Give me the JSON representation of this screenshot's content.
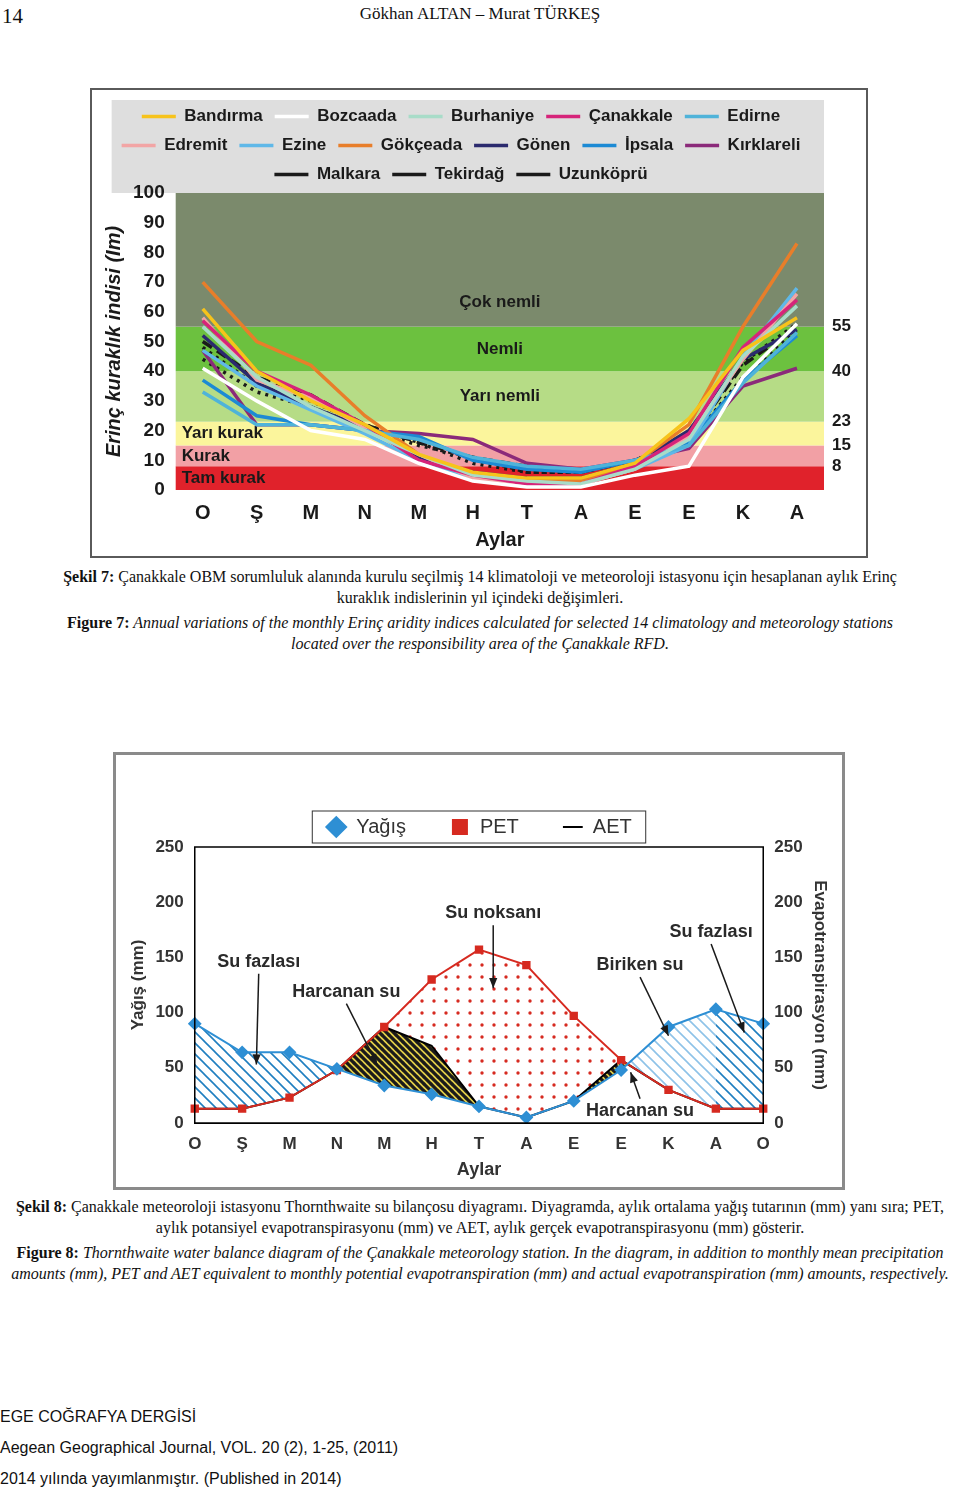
{
  "page": {
    "number": "14",
    "running_head": "Gökhan ALTAN – Murat TÜRKEŞ",
    "footer": [
      "EGE COĞRAFYA DERGİSİ",
      "Aegean Geographical Journal, VOL. 20 (2), 1-25, (2011)",
      "2014 yılında yayımlanmıştır. (Published in 2014)"
    ]
  },
  "chart_data": [
    {
      "type": "line",
      "categories": [
        "O",
        "Ş",
        "M",
        "N",
        "M",
        "H",
        "T",
        "A",
        "E",
        "E",
        "K",
        "A"
      ],
      "x_label": "Aylar",
      "y_label": "Erinç kuraklık indisi (Im)",
      "ylim": [
        0,
        100
      ],
      "yticks": [
        0,
        10,
        20,
        30,
        40,
        50,
        60,
        70,
        80,
        90,
        100
      ],
      "grid": false,
      "legend": "top",
      "bands": [
        {
          "label": "Tam kurak",
          "from": 0,
          "to": 8,
          "color": "#e0222b"
        },
        {
          "label": "Kurak",
          "from": 8,
          "to": 15,
          "color": "#f2a0a5"
        },
        {
          "label": "Yarı kurak",
          "from": 15,
          "to": 23,
          "color": "#fbf59c"
        },
        {
          "label": "Yarı nemli",
          "from": 23,
          "to": 40,
          "color": "#b6dc86"
        },
        {
          "label": "Nemli",
          "from": 40,
          "to": 55,
          "color": "#6cc13f"
        },
        {
          "label": "Çok nemli",
          "from": 55,
          "to": 100,
          "color": "#7b8a6c"
        }
      ],
      "series": [
        {
          "name": "Bandırma",
          "color": "#f7c31b",
          "values": [
            61,
            40,
            30,
            22,
            12,
            6,
            4,
            4,
            9,
            24,
            47,
            58
          ]
        },
        {
          "name": "Bozcaada",
          "color": "#ffffff",
          "values": [
            41,
            30,
            20,
            17,
            9,
            3,
            1,
            1,
            5,
            8,
            38,
            56
          ]
        },
        {
          "name": "Burhaniye",
          "color": "#a8dcc8",
          "values": [
            55,
            38,
            28,
            20,
            12,
            5,
            3,
            2,
            7,
            17,
            45,
            62
          ]
        },
        {
          "name": "Çanakkale",
          "color": "#d6247a",
          "values": [
            57,
            40,
            32,
            22,
            10,
            5,
            2,
            2,
            8,
            19,
            48,
            64
          ]
        },
        {
          "name": "Edirne",
          "color": "#4fb3d9",
          "values": [
            33,
            22,
            22,
            20,
            17,
            11,
            8,
            7,
            10,
            15,
            36,
            53
          ]
        },
        {
          "name": "Edremit",
          "color": "#f2a5a5",
          "values": [
            58,
            37,
            31,
            21,
            12,
            4,
            2,
            2,
            7,
            18,
            44,
            66
          ]
        },
        {
          "name": "Ezine",
          "color": "#5fb8e8",
          "values": [
            47,
            35,
            27,
            19,
            10,
            4,
            2,
            2,
            7,
            15,
            45,
            68
          ]
        },
        {
          "name": "Gökçeada",
          "color": "#e87e2a",
          "values": [
            70,
            50,
            42,
            25,
            12,
            5,
            3,
            3,
            9,
            22,
            55,
            83
          ]
        },
        {
          "name": "Gönen",
          "color": "#2b2a6e",
          "values": [
            52,
            36,
            28,
            21,
            11,
            6,
            4,
            4,
            9,
            20,
            44,
            54
          ]
        },
        {
          "name": "İpsala",
          "color": "#1c8ad4",
          "values": [
            37,
            25,
            22,
            20,
            18,
            10,
            7,
            6,
            10,
            16,
            37,
            52
          ]
        },
        {
          "name": "Kırklareli",
          "color": "#8b2a7a",
          "values": [
            47,
            22,
            22,
            20,
            19,
            17,
            9,
            7,
            10,
            14,
            35,
            41
          ]
        },
        {
          "name": "Malkara",
          "color": "#1a1a1a",
          "line_style": "dashed",
          "values": [
            50,
            38,
            32,
            22,
            16,
            11,
            8,
            6,
            10,
            17,
            42,
            55
          ]
        },
        {
          "name": "Tekirdağ",
          "color": "#1a1a1a",
          "line_style": "dotted",
          "values": [
            48,
            35,
            30,
            22,
            16,
            9,
            6,
            6,
            10,
            17,
            43,
            56
          ]
        },
        {
          "name": "Uzunköprü",
          "color": "#1a1a1a",
          "line_style": "dotted",
          "values": [
            44,
            33,
            28,
            21,
            15,
            11,
            6,
            6,
            10,
            16,
            38,
            54
          ]
        }
      ],
      "caption": {
        "tr": {
          "label": "Şekil 7:",
          "text": "Çanakkale OBM sorumluluk alanında kurulu seçilmiş 14 klimatoloji ve meteoroloji istasyonu için hesaplanan aylık Erinç kuraklık indislerinin yıl içindeki değişimleri."
        },
        "en": {
          "label": "Figure 7:",
          "text": "Annual variations of the monthly Erinç aridity indices calculated for selected 14 climatology and meteorology stations located over the responsibility area of the Çanakkale RFD."
        }
      }
    },
    {
      "type": "line",
      "categories": [
        "O",
        "Ş",
        "M",
        "N",
        "M",
        "H",
        "T",
        "A",
        "E",
        "E",
        "K",
        "A",
        "O"
      ],
      "x_label": "Aylar",
      "y_label": "Yağış (mm)",
      "y2_label": "Evapotranspirasyon (mm)",
      "ylim": [
        0,
        250
      ],
      "yticks": [
        0,
        50,
        100,
        150,
        200,
        250
      ],
      "y2lim": [
        0,
        250
      ],
      "y2ticks": [
        0,
        50,
        100,
        150,
        200,
        250
      ],
      "grid": false,
      "legend": "top",
      "series": [
        {
          "name": "Yağış",
          "color": "#2e8fd4",
          "marker": "diamond",
          "values": [
            90,
            64,
            64,
            49,
            34,
            26,
            15,
            5,
            20,
            48,
            87,
            103,
            90
          ]
        },
        {
          "name": "PET",
          "color": "#d62a20",
          "marker": "square",
          "axis": "y2",
          "values": [
            13,
            13,
            23,
            48,
            87,
            130,
            157,
            143,
            97,
            57,
            30,
            13,
            13
          ]
        },
        {
          "name": "AET",
          "color": "#000000",
          "marker": "none",
          "axis": "y2",
          "values": [
            13,
            13,
            23,
            48,
            87,
            70,
            15,
            5,
            20,
            57,
            30,
            13,
            13
          ]
        }
      ],
      "annotations": [
        "Su fazlası",
        "Harcanan su",
        "Su noksanı",
        "Biriken su",
        "Su fazlası",
        "Harcanan su"
      ],
      "caption": {
        "tr": {
          "label": "Şekil 8:",
          "text": "Çanakkale meteoroloji istasyonu Thornthwaite su bilançosu diyagramı. Diyagramda, aylık ortalama yağış tutarının (mm) yanı sıra; PET, aylık potansiyel evapotranspirasyonu (mm) ve AET, aylık gerçek evapotranspirasyonu (mm) gösterir."
        },
        "en": {
          "label": "Figure 8:",
          "text": "Thornthwaite water balance diagram of the Çanakkale meteorology station. In the diagram, in addition to monthly mean precipitation amounts (mm), PET and AET equivalent to monthly potential evapotranspiration (mm) and actual evapotranspiration (mm) amounts, respectively."
        }
      }
    }
  ]
}
